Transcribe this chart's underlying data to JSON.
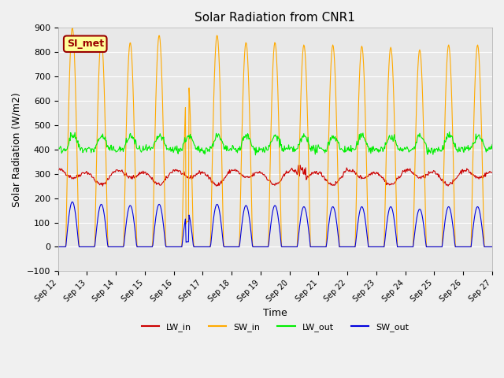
{
  "title": "Solar Radiation from CNR1",
  "xlabel": "Time",
  "ylabel": "Solar Radiation (W/m2)",
  "ylim": [
    -100,
    900
  ],
  "yticks": [
    -100,
    0,
    100,
    200,
    300,
    400,
    500,
    600,
    700,
    800,
    900
  ],
  "x_start_day": 12,
  "x_end_day": 27,
  "x_month": "Sep",
  "xtick_days": [
    12,
    13,
    14,
    15,
    16,
    17,
    18,
    19,
    20,
    21,
    22,
    23,
    24,
    25,
    26,
    27
  ],
  "colors": {
    "LW_in": "#cc0000",
    "SW_in": "#ffaa00",
    "LW_out": "#00ee00",
    "SW_out": "#0000dd"
  },
  "annotation_text": "SI_met",
  "annotation_facecolor": "#ffff99",
  "annotation_edgecolor": "#990000",
  "background_color": "#e8e8e8",
  "fig_background": "#f0f0f0",
  "grid_color": "#ffffff",
  "legend_labels": [
    "LW_in",
    "SW_in",
    "LW_out",
    "SW_out"
  ]
}
